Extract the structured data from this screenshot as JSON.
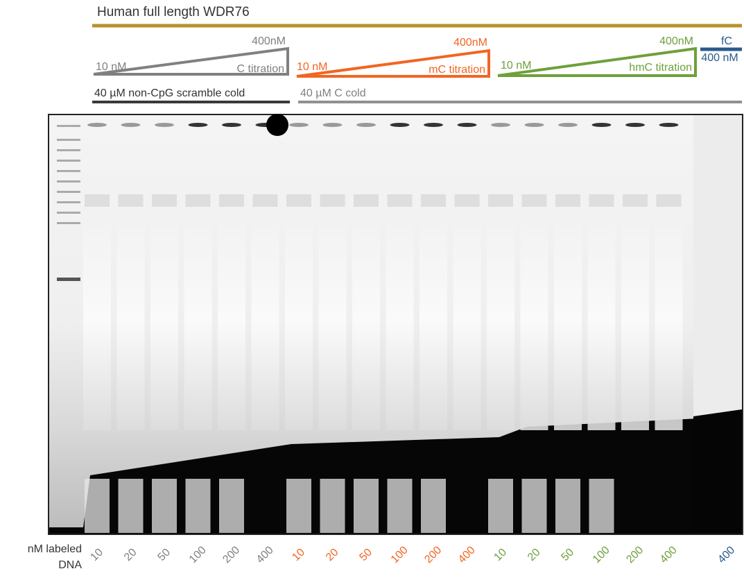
{
  "header": {
    "title": "Human full length WDR76"
  },
  "titrations": [
    {
      "low": "10 nM",
      "high": "400nM",
      "label": "C titration"
    },
    {
      "low": "10 nM",
      "high": "400nM",
      "label": "mC titration"
    },
    {
      "low": "10 nM",
      "high": "400nM",
      "label": "hmC titration"
    }
  ],
  "fc": {
    "label": "fC",
    "amount": "400 nM"
  },
  "cold": [
    "40 µM non-CpG scramble cold",
    "40 µM C cold"
  ],
  "lanes": {
    "axis_label": [
      "nM labeled",
      "DNA"
    ],
    "labels": [
      "10",
      "20",
      "50",
      "100",
      "200",
      "400",
      "10",
      "20",
      "50",
      "100",
      "200",
      "400",
      "10",
      "20",
      "50",
      "100",
      "200",
      "400",
      "400"
    ]
  }
}
